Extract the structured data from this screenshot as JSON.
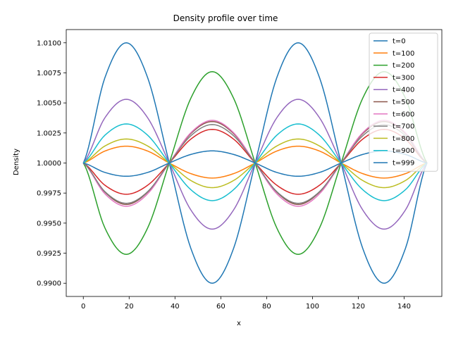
{
  "chart_data": {
    "type": "line",
    "title": "Density profile over time",
    "xlabel": "x",
    "ylabel": "Density",
    "xlim": [
      -7.45,
      156.45
    ],
    "ylim": [
      0.9889,
      1.0111
    ],
    "x_ticks": [
      0,
      20,
      40,
      60,
      80,
      100,
      120,
      140
    ],
    "y_ticks": [
      0.99,
      0.9925,
      0.995,
      0.9975,
      1.0,
      1.0025,
      1.005,
      1.0075,
      1.01
    ],
    "y_tick_labels": [
      "0.9900",
      "0.9925",
      "0.9950",
      "0.9975",
      "1.0000",
      "1.0025",
      "1.0050",
      "1.0075",
      "1.0100"
    ],
    "grid": false,
    "legend_position": "top-right",
    "x_samples": [
      0,
      9.375,
      18.75,
      28.125,
      37.5,
      46.875,
      56.25,
      65.625,
      75,
      84.375,
      93.75,
      103.125,
      112.5,
      121.875,
      131.25,
      140.625,
      150
    ],
    "series": [
      {
        "name": "t=0",
        "color": "#1f77b4",
        "values": [
          1.0,
          1.00707,
          1.01,
          1.00707,
          1.0,
          0.99293,
          0.99,
          0.99293,
          1.0,
          1.00707,
          1.01,
          1.00707,
          1.0,
          0.99293,
          0.99,
          0.99293,
          1.0
        ]
      },
      {
        "name": "t=100",
        "color": "#ff7f0e",
        "values": [
          1.0,
          1.00099,
          1.0014,
          1.00099,
          1.0,
          0.99912,
          0.99875,
          0.99912,
          1.0,
          1.00099,
          1.0014,
          1.00099,
          1.0,
          0.99912,
          0.99875,
          0.99912,
          1.0
        ]
      },
      {
        "name": "t=200",
        "color": "#2ca02c",
        "values": [
          1.0,
          0.99462,
          0.9924,
          0.99462,
          1.0,
          1.00537,
          1.0076,
          1.00537,
          1.0,
          0.99462,
          0.9924,
          0.99462,
          1.0,
          1.00537,
          1.0076,
          1.00537,
          1.0
        ]
      },
      {
        "name": "t=300",
        "color": "#d62728",
        "values": [
          1.0,
          0.99816,
          0.9974,
          0.99816,
          1.0,
          1.00198,
          1.0028,
          1.00198,
          1.0,
          0.99816,
          0.9974,
          0.99816,
          1.0,
          1.00198,
          1.0028,
          1.00198,
          1.0
        ]
      },
      {
        "name": "t=400",
        "color": "#9467bd",
        "values": [
          1.0,
          1.00375,
          1.0053,
          1.00375,
          1.0,
          0.99611,
          0.9945,
          0.99611,
          1.0,
          1.00375,
          1.0053,
          1.00375,
          1.0,
          0.99611,
          0.9945,
          0.99611,
          1.0
        ]
      },
      {
        "name": "t=500",
        "color": "#8c564b",
        "values": [
          1.0,
          0.99759,
          0.99655,
          0.99759,
          1.0,
          1.00244,
          1.00345,
          1.00244,
          1.0,
          0.99759,
          0.99655,
          0.99759,
          1.0,
          1.00244,
          1.00345,
          1.00244,
          1.0
        ]
      },
      {
        "name": "t=600",
        "color": "#e377c2",
        "values": [
          1.0,
          0.99745,
          0.9964,
          0.99745,
          1.0,
          1.00251,
          1.00355,
          1.00251,
          1.0,
          0.99745,
          0.9964,
          0.99745,
          1.0,
          1.00251,
          1.00355,
          1.00251,
          1.0
        ]
      },
      {
        "name": "t=700",
        "color": "#7f7f7f",
        "values": [
          1.0,
          0.99763,
          0.99665,
          0.99763,
          1.0,
          1.00226,
          1.0032,
          1.00226,
          1.0,
          0.99763,
          0.99665,
          0.99763,
          1.0,
          1.00226,
          1.0032,
          1.00226,
          1.0
        ]
      },
      {
        "name": "t=800",
        "color": "#bcbd22",
        "values": [
          1.0,
          1.00141,
          1.002,
          1.00141,
          1.0,
          0.99855,
          0.99795,
          0.99855,
          1.0,
          1.00141,
          1.002,
          1.00141,
          1.0,
          0.99855,
          0.99795,
          0.99855,
          1.0
        ]
      },
      {
        "name": "t=900",
        "color": "#17becf",
        "values": [
          1.0,
          1.0023,
          1.00325,
          1.0023,
          1.0,
          0.99779,
          0.99687,
          0.99779,
          1.0,
          1.0023,
          1.00325,
          1.0023,
          1.0,
          0.99779,
          0.99687,
          0.99779,
          1.0
        ]
      },
      {
        "name": "t=999",
        "color": "#1f77b4",
        "values": [
          1.0,
          0.99922,
          0.9989,
          0.99922,
          1.0,
          1.00071,
          1.00101,
          1.00071,
          1.0,
          0.99922,
          0.9989,
          0.99922,
          1.0,
          1.00071,
          1.00101,
          1.00071,
          1.0
        ]
      }
    ]
  }
}
